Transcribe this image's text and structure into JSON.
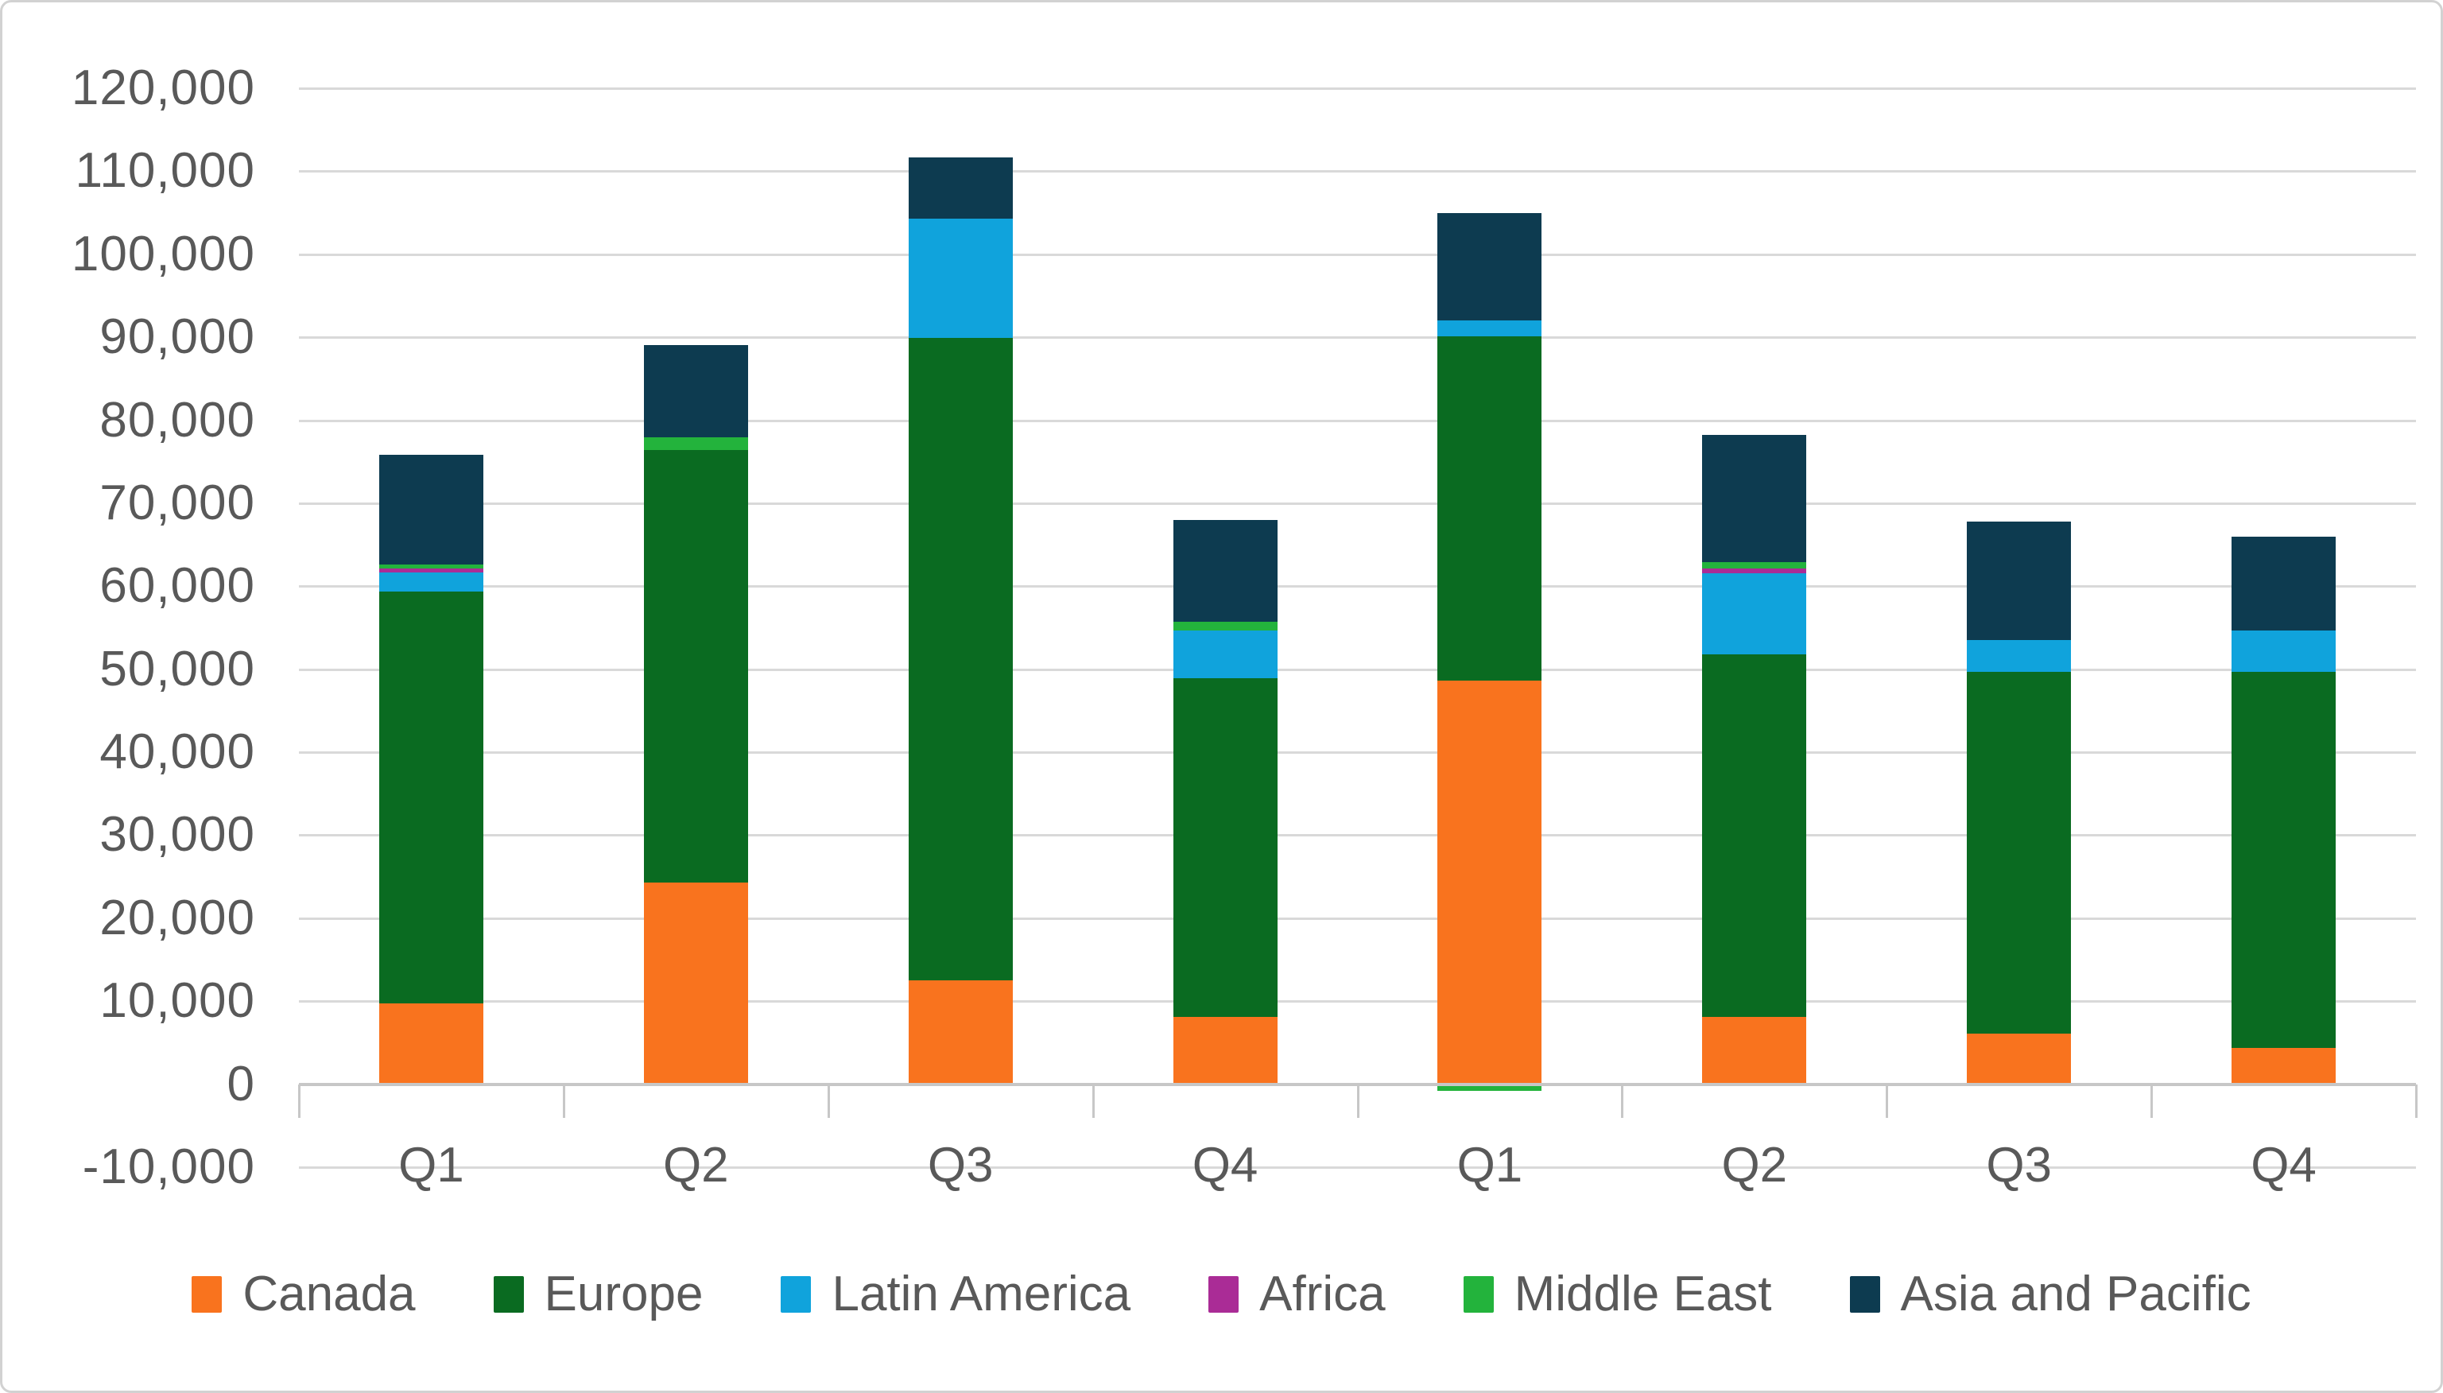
{
  "chart": {
    "background": "#FFFFFF",
    "frame_border_color": "#D2D2D2",
    "grid_color": "#D9D9D9",
    "axis_line_color": "#C7C7C7",
    "label_color": "#595959"
  },
  "chart_data": {
    "type": "bar",
    "stacked": true,
    "title": "",
    "xlabel": "",
    "ylabel": "",
    "grid": true,
    "legend_position": "bottom",
    "ylim": [
      -10000,
      120000
    ],
    "ytick_step": 10000,
    "ytick_labels": [
      "120,000",
      "110,000",
      "100,000",
      "90,000",
      "80,000",
      "70,000",
      "60,000",
      "50,000",
      "40,000",
      "30,000",
      "20,000",
      "10,000",
      "0",
      "-10,000"
    ],
    "categories": [
      "Q1",
      "Q2",
      "Q3",
      "Q4",
      "Q1",
      "Q2",
      "Q3",
      "Q4"
    ],
    "series": [
      {
        "name": "Canada",
        "color": "#F9731E",
        "values": [
          9700,
          24300,
          12500,
          8100,
          48600,
          8100,
          6100,
          4400
        ]
      },
      {
        "name": "Europe",
        "color": "#0A6B21",
        "values": [
          49700,
          52100,
          77400,
          40800,
          41500,
          43700,
          43600,
          45300
        ]
      },
      {
        "name": "Latin America",
        "color": "#10A3DC",
        "values": [
          2300,
          0,
          14400,
          5800,
          1900,
          9800,
          3800,
          5000
        ]
      },
      {
        "name": "Africa",
        "color": "#AA2C96",
        "values": [
          400,
          0,
          0,
          0,
          0,
          500,
          0,
          0
        ]
      },
      {
        "name": "Middle East",
        "color": "#23B33C",
        "values": [
          500,
          1500,
          0,
          1000,
          -800,
          800,
          0,
          0
        ]
      },
      {
        "name": "Asia and Pacific",
        "color": "#0D3B50",
        "values": [
          13200,
          11200,
          7400,
          12300,
          13000,
          15300,
          14300,
          11300
        ]
      }
    ],
    "approx_totals": [
      75800,
      89100,
      111700,
      68000,
      105000,
      78200,
      67800,
      66000
    ]
  }
}
